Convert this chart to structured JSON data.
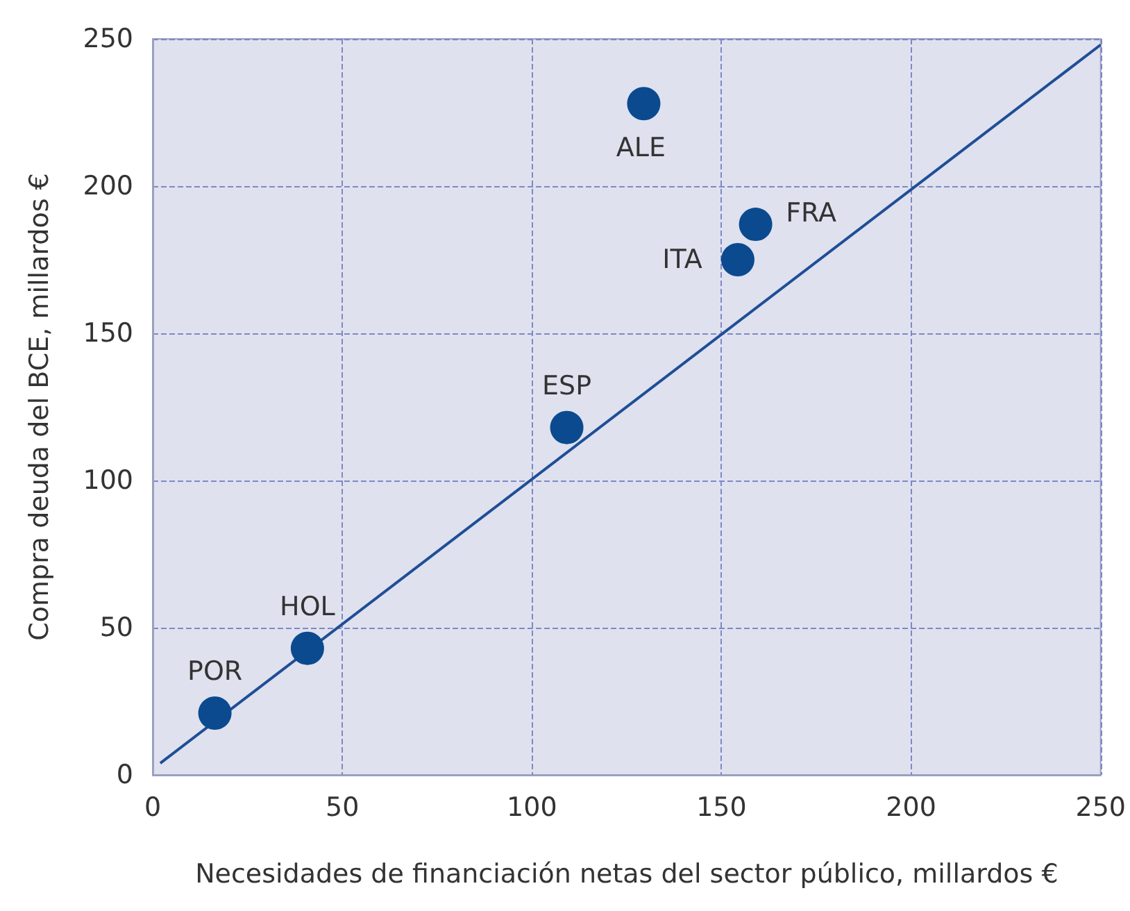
{
  "chart_data": {
    "type": "scatter",
    "xlabel": "Necesidades de financiación netas del sector público, millardos €",
    "ylabel": "Compra deuda del BCE, millardos €",
    "xlim": [
      0,
      250
    ],
    "xticks": [
      0,
      50,
      100,
      150,
      200,
      250
    ],
    "ylim": [
      0,
      250
    ],
    "yticks": [
      0,
      50,
      100,
      150,
      200,
      250
    ],
    "grid": true,
    "series": [
      {
        "color": "#0b4a8f",
        "marker": "circle",
        "x": [
          16.4,
          40.8,
          109.2,
          129.5,
          154.3,
          159
        ],
        "values": [
          21,
          43,
          118,
          228,
          175,
          187
        ]
      },
      {
        "type": "line",
        "color": "#1f4e96",
        "marker": "none",
        "line_style": "solid",
        "x": [
          2,
          250
        ],
        "values": [
          4,
          248
        ]
      }
    ],
    "annotations": [
      {
        "text": "POR",
        "x": 16.4,
        "y": 21
      },
      {
        "text": "HOL",
        "x": 40.8,
        "y": 43
      },
      {
        "text": "ESP",
        "x": 109.2,
        "y": 118
      },
      {
        "text": "ALE",
        "x": 129.5,
        "y": 228
      },
      {
        "text": "ITA",
        "x": 154.3,
        "y": 175
      },
      {
        "text": "FRA",
        "x": 159,
        "y": 187
      }
    ]
  }
}
